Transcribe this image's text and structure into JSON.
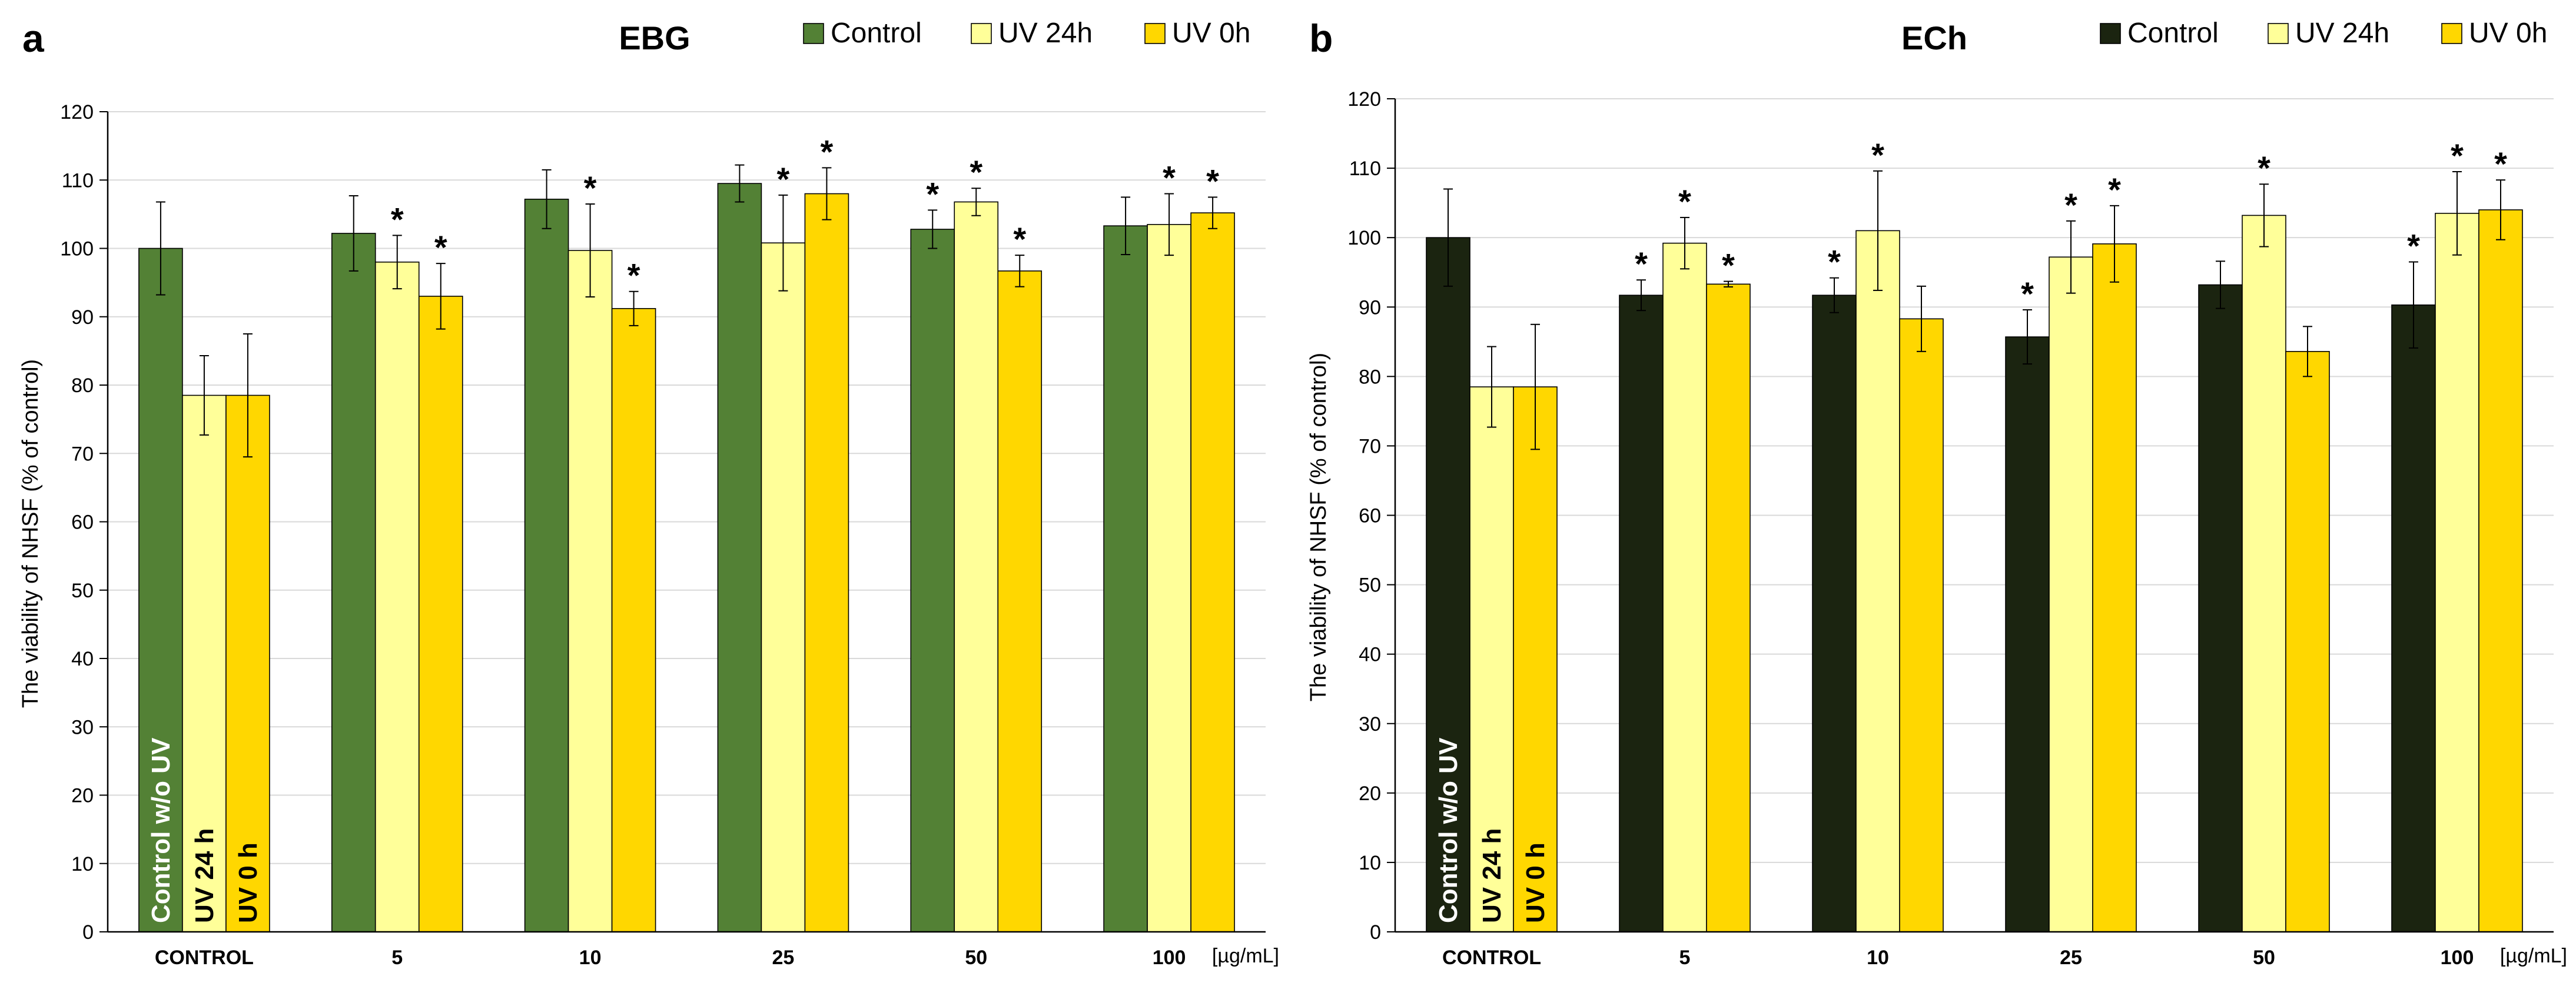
{
  "colors": {
    "ebg_control": "#538135",
    "ech_control": "#1B2410",
    "uv24": "#FFFF99",
    "uv0": "#FFD700",
    "grid": "#D9D9D9",
    "axis": "#000000"
  },
  "shared": {
    "ylabel": "The viability of NHSF (% of control)",
    "unit": "[µg/mL]",
    "star": "*",
    "control_bar_labels": [
      "Control w/o UV",
      "UV 24 h",
      "UV 0 h"
    ]
  },
  "chart_data": [
    {
      "panel_letter": "a",
      "type": "bar",
      "title": "EBG",
      "xlabel": "[µg/mL]",
      "ylabel": "The viability of NHSF (% of control)",
      "ylim": [
        0,
        120
      ],
      "yticks": [
        0,
        10,
        20,
        30,
        40,
        50,
        60,
        70,
        80,
        90,
        100,
        110,
        120
      ],
      "grid": true,
      "legend_position": "top-right",
      "categories": [
        "CONTROL",
        "5",
        "10",
        "25",
        "50",
        "100"
      ],
      "series": [
        {
          "name": "Control",
          "color": "#538135",
          "values": [
            100,
            102.2,
            107.2,
            109.5,
            102.8,
            103.3
          ],
          "errors": [
            6.8,
            5.5,
            4.3,
            2.7,
            2.8,
            4.2
          ],
          "significant": [
            false,
            false,
            false,
            false,
            true,
            false
          ]
        },
        {
          "name": "UV 24h",
          "color": "#FFFF99",
          "values": [
            78.5,
            98.0,
            99.7,
            100.8,
            106.8,
            103.5
          ],
          "errors": [
            5.8,
            3.9,
            6.8,
            7.0,
            2.0,
            4.5
          ],
          "significant": [
            false,
            true,
            true,
            true,
            true,
            true
          ]
        },
        {
          "name": "UV 0h",
          "color": "#FFD700",
          "values": [
            78.5,
            93.0,
            91.2,
            108.0,
            96.7,
            105.2
          ],
          "errors": [
            9.0,
            4.8,
            2.5,
            3.8,
            2.3,
            2.3
          ],
          "significant": [
            false,
            true,
            true,
            true,
            true,
            true
          ]
        }
      ]
    },
    {
      "panel_letter": "b",
      "type": "bar",
      "title": "ECh",
      "xlabel": "[µg/mL]",
      "ylabel": "The viability of NHSF (% of control)",
      "ylim": [
        0,
        120
      ],
      "yticks": [
        0,
        10,
        20,
        30,
        40,
        50,
        60,
        70,
        80,
        90,
        100,
        110,
        120
      ],
      "grid": true,
      "legend_position": "top-right",
      "categories": [
        "CONTROL",
        "5",
        "10",
        "25",
        "50",
        "100"
      ],
      "series": [
        {
          "name": "Control",
          "color": "#1B2410",
          "values": [
            100,
            91.7,
            91.7,
            85.7,
            93.2,
            90.3
          ],
          "errors": [
            7.0,
            2.2,
            2.5,
            3.9,
            3.4,
            6.2
          ],
          "significant": [
            false,
            true,
            true,
            true,
            false,
            true
          ]
        },
        {
          "name": "UV 24h",
          "color": "#FFFF99",
          "values": [
            78.5,
            99.2,
            101.0,
            97.2,
            103.2,
            103.5
          ],
          "errors": [
            5.8,
            3.7,
            8.6,
            5.2,
            4.5,
            6.0
          ],
          "significant": [
            false,
            true,
            true,
            true,
            true,
            true
          ]
        },
        {
          "name": "UV 0h",
          "color": "#FFD700",
          "values": [
            78.5,
            93.3,
            88.3,
            99.1,
            83.6,
            104.0
          ],
          "errors": [
            9.0,
            0.4,
            4.7,
            5.5,
            3.6,
            4.3
          ],
          "significant": [
            false,
            true,
            false,
            true,
            false,
            true
          ]
        }
      ]
    }
  ]
}
